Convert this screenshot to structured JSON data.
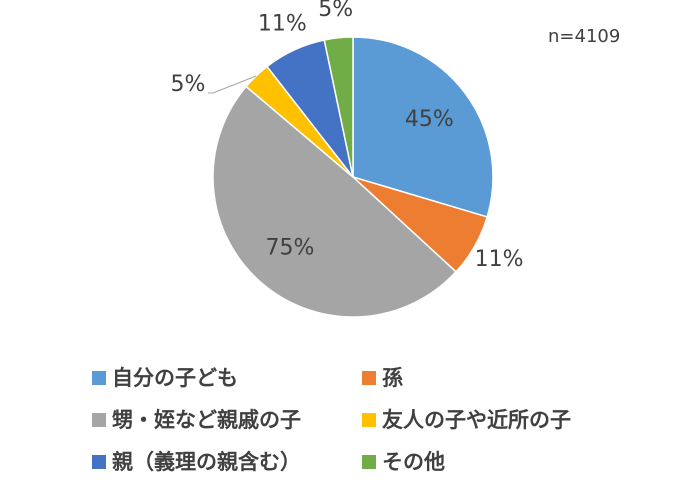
{
  "chart_data": {
    "type": "pie",
    "annotation": "n=4109",
    "categories": [
      "自分の子ども",
      "孫",
      "甥・姪など親戚の子",
      "友人の子や近所の子",
      "親（義理の親含む）",
      "その他"
    ],
    "values": [
      45,
      11,
      75,
      5,
      11,
      5
    ],
    "value_labels": [
      "45%",
      "11%",
      "75%",
      "5%",
      "11%",
      "5%"
    ],
    "colors": [
      "#5b9bd5",
      "#ed7d31",
      "#a5a5a5",
      "#ffc000",
      "#4472c4",
      "#70ad47"
    ],
    "legend": "bottom"
  }
}
